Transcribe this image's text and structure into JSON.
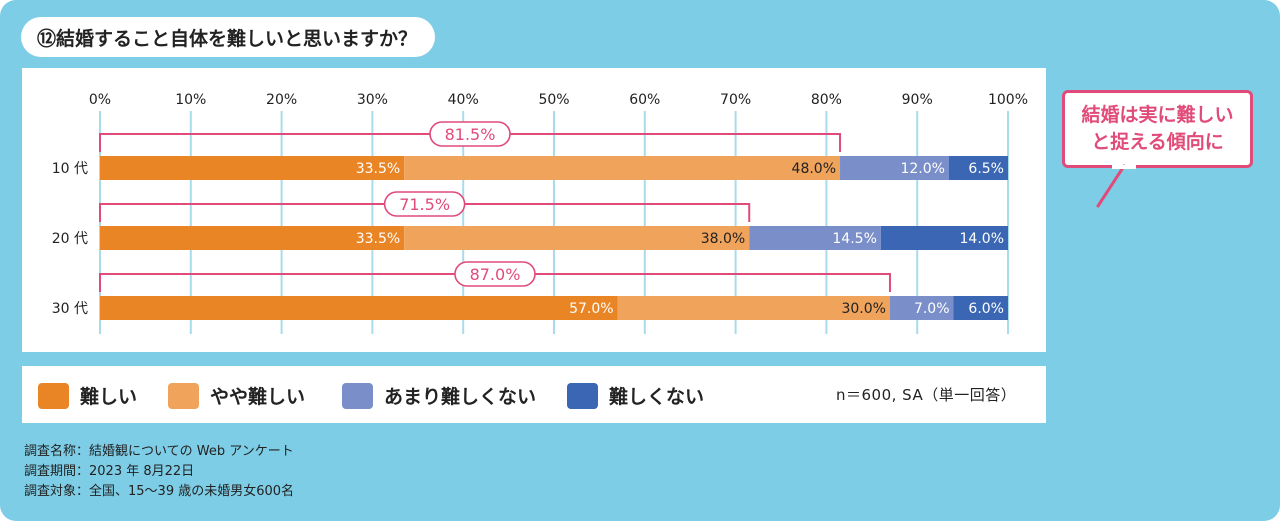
{
  "title": "⑫結婚すること自体を難しいと思いますか？",
  "colors": {
    "background": "#7ecde6",
    "accent": "#e14b7a",
    "segments": [
      "#ea8526",
      "#f0a35a",
      "#7a8fca",
      "#3b66b4"
    ]
  },
  "chart_data": {
    "type": "bar",
    "orientation": "horizontal",
    "stacked": true,
    "xlim": [
      0,
      100
    ],
    "x_ticks": [
      "0%",
      "10%",
      "20%",
      "30%",
      "40%",
      "50%",
      "60%",
      "70%",
      "80%",
      "90%",
      "100%"
    ],
    "categories": [
      "10 代",
      "20 代",
      "30 代"
    ],
    "series": [
      {
        "name": "難しい",
        "values": [
          33.5,
          33.5,
          57.0
        ],
        "labels": [
          "33.5%",
          "33.5%",
          "57.0%"
        ]
      },
      {
        "name": "やや難しい",
        "values": [
          48.0,
          38.0,
          30.0
        ],
        "labels": [
          "48.0%",
          "38.0%",
          "30.0%"
        ]
      },
      {
        "name": "あまり難しくない",
        "values": [
          12.0,
          14.5,
          7.0
        ],
        "labels": [
          "12.0%",
          "14.5%",
          "7.0%"
        ]
      },
      {
        "name": "難しくない",
        "values": [
          6.5,
          14.0,
          6.0
        ],
        "labels": [
          "6.5%",
          "14.0%",
          "6.0%"
        ]
      }
    ],
    "totals": [
      {
        "value": 81.5,
        "label": "81.5%"
      },
      {
        "value": 71.5,
        "label": "71.5%"
      },
      {
        "value": 87.0,
        "label": "87.0%"
      }
    ],
    "grid": true,
    "legend_position": "bottom"
  },
  "legend": {
    "items": [
      "難しい",
      "やや難しい",
      "あまり難しくない",
      "難しくない"
    ],
    "sample_note": "n＝600, SA（単一回答）"
  },
  "callout": {
    "line1": "結婚は実に難しい",
    "line2": "と捉える傾向に"
  },
  "notes": [
    "調査名称：結婚観についての Web アンケート",
    "調査期間：2023 年 8月22日",
    "調査対象：全国、15～39 歳の未婚男女600名"
  ]
}
